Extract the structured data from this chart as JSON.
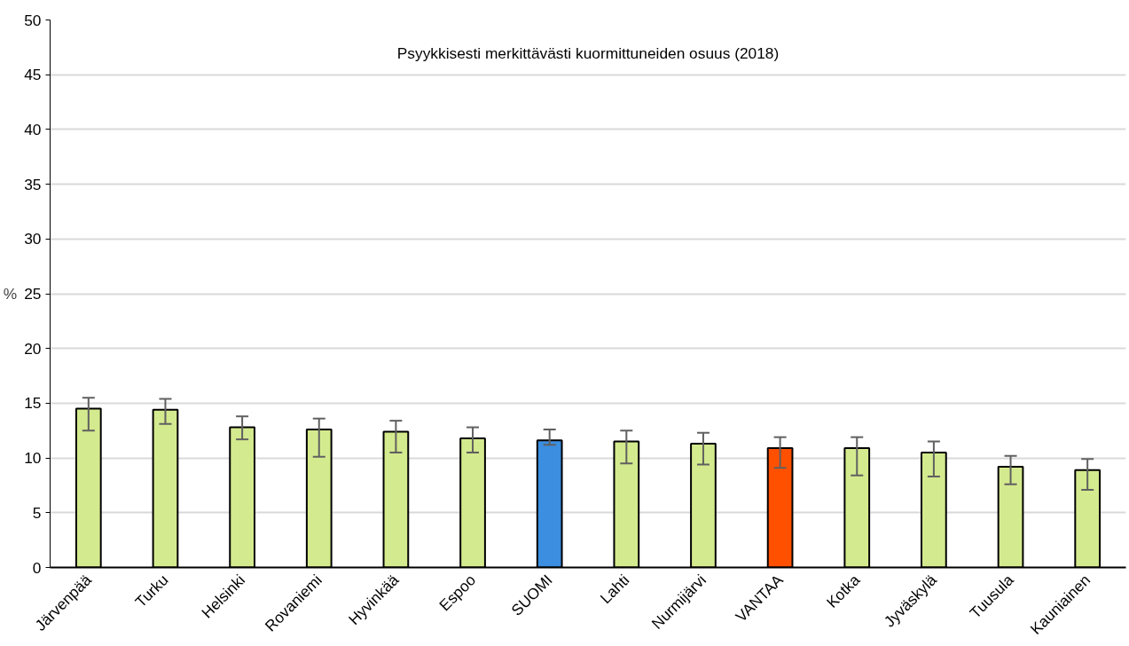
{
  "chart_data": {
    "type": "bar",
    "title": "Psyykkisesti merkittävästi kuormittuneiden osuus (2018)",
    "ylabel": "%",
    "categories": [
      "Järvenpää",
      "Turku",
      "Helsinki",
      "Rovaniemi",
      "Hyvinkää",
      "Espoo",
      "SUOMI",
      "Lahti",
      "Nurmijärvi",
      "VANTAA",
      "Kotka",
      "Jyväskylä",
      "Tuusula",
      "Kauniainen"
    ],
    "values": [
      14.5,
      14.4,
      12.8,
      12.6,
      12.4,
      11.8,
      11.6,
      11.5,
      11.3,
      10.9,
      10.9,
      10.5,
      9.2,
      8.9
    ],
    "colors": [
      "#d4ea8e",
      "#d4ea8e",
      "#d4ea8e",
      "#d4ea8e",
      "#d4ea8e",
      "#d4ea8e",
      "#3b8ee0",
      "#d4ea8e",
      "#d4ea8e",
      "#ff5000",
      "#d4ea8e",
      "#d4ea8e",
      "#d4ea8e",
      "#d4ea8e"
    ],
    "errors": [
      [
        12.5,
        15.5
      ],
      [
        13.1,
        15.4
      ],
      [
        11.7,
        13.8
      ],
      [
        10.1,
        13.6
      ],
      [
        10.5,
        13.4
      ],
      [
        10.5,
        12.8
      ],
      [
        11.2,
        12.6
      ],
      [
        9.5,
        12.5
      ],
      [
        9.4,
        12.3
      ],
      [
        9.1,
        11.9
      ],
      [
        8.4,
        11.9
      ],
      [
        8.3,
        11.5
      ],
      [
        7.6,
        10.2
      ],
      [
        7.1,
        9.9
      ]
    ],
    "ylim": [
      0,
      50
    ],
    "yticks": [
      0,
      5,
      10,
      15,
      20,
      25,
      30,
      35,
      40,
      45,
      50
    ],
    "grid": "y"
  }
}
